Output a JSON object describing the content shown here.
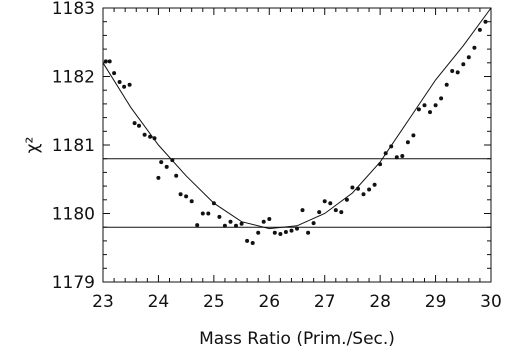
{
  "chart_data": {
    "type": "scatter",
    "title": "",
    "xlabel": "Mass Ratio (Prim./Sec.)",
    "ylabel": "χ²",
    "xlim": [
      23,
      30
    ],
    "ylim": [
      1179,
      1183
    ],
    "xticks": [
      23,
      24,
      25,
      26,
      27,
      28,
      29,
      30
    ],
    "yticks": [
      1179,
      1180,
      1181,
      1182,
      1183
    ],
    "grid": false,
    "series": [
      {
        "type": "scatter",
        "x": [
          23.05,
          23.12,
          23.2,
          23.3,
          23.38,
          23.48,
          23.57,
          23.65,
          23.75,
          23.85,
          23.93,
          24.0,
          24.05,
          24.15,
          24.25,
          24.32,
          24.4,
          24.5,
          24.6,
          24.7,
          24.8,
          24.9,
          25.0,
          25.1,
          25.2,
          25.3,
          25.4,
          25.5,
          25.6,
          25.7,
          25.8,
          25.9,
          26.0,
          26.1,
          26.2,
          26.3,
          26.4,
          26.5,
          26.6,
          26.7,
          26.8,
          26.9,
          27.0,
          27.1,
          27.2,
          27.3,
          27.4,
          27.5,
          27.6,
          27.7,
          27.8,
          27.9,
          28.0,
          28.1,
          28.2,
          28.3,
          28.4,
          28.5,
          28.6,
          28.7,
          28.8,
          28.9,
          29.0,
          29.1,
          29.2,
          29.3,
          29.4,
          29.5,
          29.6,
          29.7,
          29.8,
          29.9
        ],
        "y": [
          1182.22,
          1182.22,
          1182.05,
          1181.92,
          1181.85,
          1181.88,
          1181.32,
          1181.28,
          1181.15,
          1181.12,
          1181.1,
          1180.52,
          1180.75,
          1180.68,
          1180.78,
          1180.55,
          1180.28,
          1180.25,
          1180.18,
          1179.83,
          1180.0,
          1180.0,
          1180.15,
          1179.95,
          1179.82,
          1179.88,
          1179.82,
          1179.85,
          1179.6,
          1179.57,
          1179.72,
          1179.88,
          1179.92,
          1179.72,
          1179.7,
          1179.73,
          1179.75,
          1179.78,
          1180.05,
          1179.72,
          1179.86,
          1180.02,
          1180.18,
          1180.15,
          1180.05,
          1180.02,
          1180.2,
          1180.38,
          1180.36,
          1180.28,
          1180.35,
          1180.42,
          1180.72,
          1180.88,
          1180.98,
          1180.82,
          1180.84,
          1181.04,
          1181.14,
          1181.52,
          1181.58,
          1181.48,
          1181.58,
          1181.68,
          1181.88,
          1182.08,
          1182.06,
          1182.18,
          1182.28,
          1182.42,
          1182.68,
          1182.8
        ]
      },
      {
        "type": "line",
        "x": [
          23.0,
          23.5,
          24.0,
          24.5,
          25.0,
          25.5,
          26.0,
          26.5,
          27.0,
          27.5,
          28.0,
          28.5,
          29.0,
          29.5,
          30.0
        ],
        "y": [
          1182.2,
          1181.55,
          1181.0,
          1180.55,
          1180.15,
          1179.88,
          1179.78,
          1179.82,
          1180.0,
          1180.3,
          1180.75,
          1181.35,
          1181.95,
          1182.45,
          1183.0
        ]
      }
    ],
    "hlines": [
      1180.8,
      1179.8
    ]
  }
}
